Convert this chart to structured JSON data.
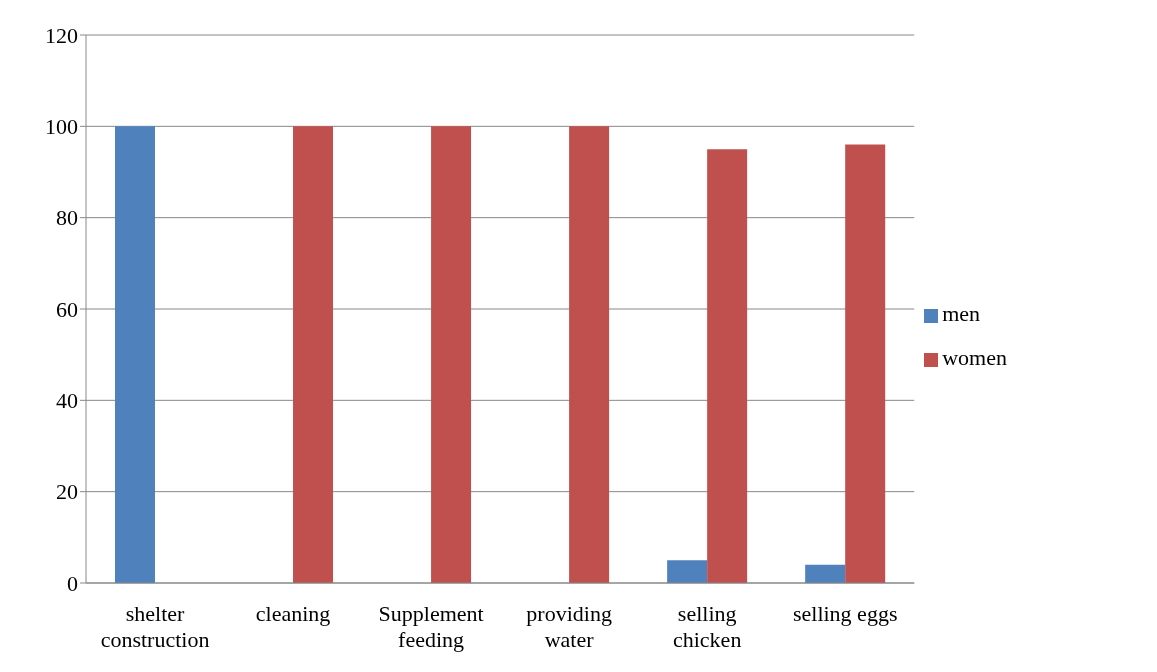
{
  "chart_data": {
    "type": "bar",
    "categories": [
      "shelter construction",
      "cleaning",
      "Supplement feeding",
      "providing water",
      "selling chicken",
      "selling eggs"
    ],
    "series": [
      {
        "name": "men",
        "color": "#4f81bd",
        "values": [
          100,
          0,
          0,
          0,
          5,
          4
        ]
      },
      {
        "name": "women",
        "color": "#c0504d",
        "values": [
          0,
          100,
          100,
          100,
          95,
          96
        ]
      }
    ],
    "ylim": [
      0,
      120
    ],
    "yticks": [
      0,
      20,
      40,
      60,
      80,
      100,
      120
    ],
    "grid": "y",
    "legend": "right"
  }
}
